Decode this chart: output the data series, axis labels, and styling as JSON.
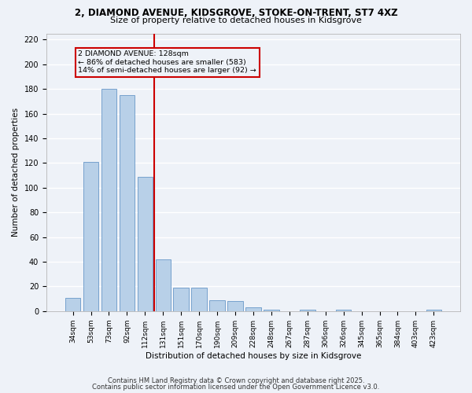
{
  "title1": "2, DIAMOND AVENUE, KIDSGROVE, STOKE-ON-TRENT, ST7 4XZ",
  "title2": "Size of property relative to detached houses in Kidsgrove",
  "xlabel": "Distribution of detached houses by size in Kidsgrove",
  "ylabel": "Number of detached properties",
  "categories": [
    "34sqm",
    "53sqm",
    "73sqm",
    "92sqm",
    "112sqm",
    "131sqm",
    "151sqm",
    "170sqm",
    "190sqm",
    "209sqm",
    "228sqm",
    "248sqm",
    "267sqm",
    "287sqm",
    "306sqm",
    "326sqm",
    "345sqm",
    "365sqm",
    "384sqm",
    "403sqm",
    "423sqm"
  ],
  "values": [
    11,
    121,
    180,
    175,
    109,
    42,
    19,
    19,
    9,
    8,
    3,
    1,
    0,
    1,
    0,
    1,
    0,
    0,
    0,
    0,
    1
  ],
  "bar_color": "#b8d0e8",
  "bar_edge_color": "#6898c8",
  "property_label": "2 DIAMOND AVENUE: 128sqm",
  "annotation_line1": "← 86% of detached houses are smaller (583)",
  "annotation_line2": "14% of semi-detached houses are larger (92) →",
  "vline_color": "#cc0000",
  "annotation_box_color": "#cc0000",
  "ylim": [
    0,
    225
  ],
  "yticks": [
    0,
    20,
    40,
    60,
    80,
    100,
    120,
    140,
    160,
    180,
    200,
    220
  ],
  "background_color": "#eef2f8",
  "grid_color": "#ffffff",
  "footer1": "Contains HM Land Registry data © Crown copyright and database right 2025.",
  "footer2": "Contains public sector information licensed under the Open Government Licence v3.0."
}
